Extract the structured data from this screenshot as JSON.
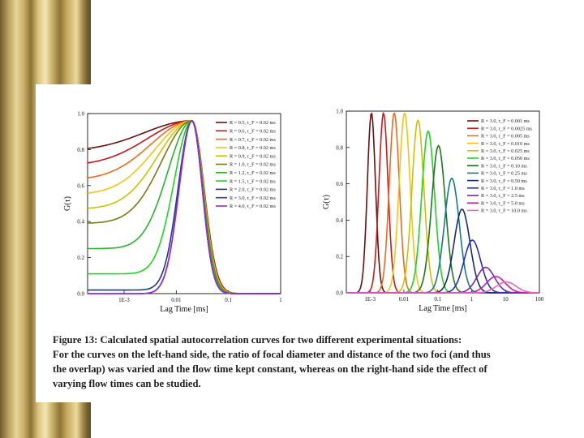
{
  "chart_data": [
    {
      "type": "line",
      "xscale": "log",
      "xlabel": "Lag Time [ms]",
      "ylabel": "G(τ)",
      "xlim": [
        0.0002,
        1
      ],
      "ylim": [
        0.0,
        1.0
      ],
      "xtick_labels": [
        "1E-3",
        "0.01",
        "0.1",
        "1"
      ],
      "ytick_labels": [
        "0.0",
        "0.2",
        "0.4",
        "0.6",
        "0.8",
        "1.0"
      ],
      "grid": false,
      "legend_position": "top-right",
      "peak_x": 0.02,
      "series": [
        {
          "name": "R = 0.5, τ_F = 0.02 ms",
          "color": "#6b0f0f",
          "g0": 0.79
        },
        {
          "name": "R = 0.6, τ_F = 0.02 ms",
          "color": "#c81414",
          "g0": 0.71
        },
        {
          "name": "R = 0.7, τ_F = 0.02 ms",
          "color": "#f06a1e",
          "g0": 0.63
        },
        {
          "name": "R = 0.8, τ_F = 0.02 ms",
          "color": "#f5c40f",
          "g0": 0.55
        },
        {
          "name": "R = 0.9, τ_F = 0.02 ms",
          "color": "#c9c200",
          "g0": 0.47
        },
        {
          "name": "R = 1.0, τ_F = 0.02 ms",
          "color": "#7a7a14",
          "g0": 0.39
        },
        {
          "name": "R = 1.2, τ_F = 0.02 ms",
          "color": "#2bb22b",
          "g0": 0.25
        },
        {
          "name": "R = 1.5, τ_F = 0.02 ms",
          "color": "#1cd61c",
          "g0": 0.11
        },
        {
          "name": "R = 2.0, τ_F = 0.02 ms",
          "color": "#1a3a8c",
          "g0": 0.02
        },
        {
          "name": "R = 3.0, τ_F = 0.02 ms",
          "color": "#3535d8",
          "g0": 0.0
        },
        {
          "name": "R = 4.0, τ_F = 0.02 ms",
          "color": "#9a28d2",
          "g0": 0.0
        }
      ]
    },
    {
      "type": "line",
      "xscale": "log",
      "xlabel": "Lag Time [ms]",
      "ylabel": "G(τ)",
      "xlim": [
        0.0002,
        100
      ],
      "ylim": [
        0.0,
        1.0
      ],
      "xtick_labels": [
        "1E-3",
        "0.01",
        "0.1",
        "1",
        "10",
        "100"
      ],
      "ytick_labels": [
        "0.0",
        "0.2",
        "0.4",
        "0.6",
        "0.8",
        "1.0"
      ],
      "grid": false,
      "legend_position": "top-right",
      "series": [
        {
          "name": "R = 3.0, τ_F = 0.001 ms",
          "color": "#6b0f0f",
          "peak_x": 0.0011,
          "peak_y": 0.99
        },
        {
          "name": "R = 3.0, τ_F = 0.0025 ms",
          "color": "#d01818",
          "peak_x": 0.0025,
          "peak_y": 0.99
        },
        {
          "name": "R = 3.0, τ_F = 0.005 ms",
          "color": "#f06a1e",
          "peak_x": 0.0052,
          "peak_y": 0.99
        },
        {
          "name": "R = 3.0, τ_F = 0.010 ms",
          "color": "#f5c40f",
          "peak_x": 0.0105,
          "peak_y": 0.99
        },
        {
          "name": "R = 3.0, τ_F = 0.025 ms",
          "color": "#c9c200",
          "peak_x": 0.026,
          "peak_y": 0.95
        },
        {
          "name": "R = 3.0, τ_F = 0.050 ms",
          "color": "#1cd61c",
          "peak_x": 0.052,
          "peak_y": 0.89
        },
        {
          "name": "R = 3.0, τ_F = 0.10 ms",
          "color": "#1b7a1b",
          "peak_x": 0.105,
          "peak_y": 0.81
        },
        {
          "name": "R = 3.0, τ_F = 0.25 ms",
          "color": "#157a8c",
          "peak_x": 0.26,
          "peak_y": 0.63
        },
        {
          "name": "R = 3.0, τ_F = 0.50 ms",
          "color": "#1a2a6a",
          "peak_x": 0.52,
          "peak_y": 0.46
        },
        {
          "name": "R = 3.0, τ_F = 1.0 ms",
          "color": "#2a2ad0",
          "peak_x": 1.05,
          "peak_y": 0.29
        },
        {
          "name": "R = 3.0, τ_F = 2.5 ms",
          "color": "#7a28a8",
          "peak_x": 2.6,
          "peak_y": 0.14
        },
        {
          "name": "R = 3.0, τ_F = 5.0 ms",
          "color": "#c21ea8",
          "peak_x": 5.2,
          "peak_y": 0.09
        },
        {
          "name": "R = 3.0, τ_F = 10.0 ms",
          "color": "#f062c8",
          "peak_x": 10.5,
          "peak_y": 0.06
        }
      ]
    }
  ],
  "caption": {
    "line1": "Figure 13: Calculated spatial autocorrelation curves for two different experimental situations:",
    "line2": "For the curves on the left-hand side, the ratio of focal diameter and distance of the two foci (and thus",
    "line3": "the overlap) was varied and the flow time kept constant, whereas on the right-hand side the effect of",
    "line4": "varying flow times can be studied."
  }
}
